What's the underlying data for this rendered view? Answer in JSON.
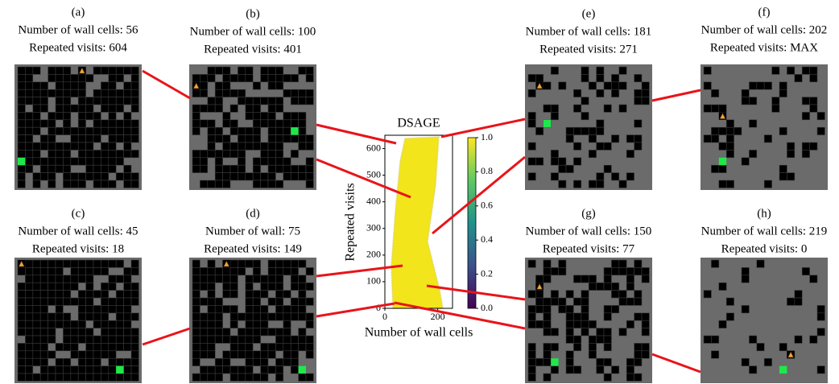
{
  "panels": [
    {
      "label": "(a)",
      "walls": "Number of wall cells: 56",
      "visits": "Repeated visits: 604"
    },
    {
      "label": "(b)",
      "walls": "Number of wall cells: 100",
      "visits": "Repeated visits: 401"
    },
    {
      "label": "(c)",
      "walls": "Number of wall cells: 45",
      "visits": "Repeated visits: 18"
    },
    {
      "label": "(d)",
      "walls": "Number of wall: 75",
      "visits": "Repeated visits: 149"
    },
    {
      "label": "(e)",
      "walls": "Number of wall cells: 181",
      "visits": "Repeated visits: 271"
    },
    {
      "label": "(f)",
      "walls": "Number of wall cells: 202",
      "visits": "Repeated visits: MAX"
    },
    {
      "label": "(g)",
      "walls": "Number of wall cells: 150",
      "visits": "Repeated visits: 77"
    },
    {
      "label": "(h)",
      "walls": "Number of wall cells: 219",
      "visits": "Repeated visits: 0"
    }
  ],
  "chart_data": {
    "type": "heatmap",
    "title": "DSAGE",
    "x_label": "Number of wall cells",
    "y_label": "Repeated visits",
    "xlim": [
      0,
      256
    ],
    "xticks": [
      0,
      200
    ],
    "ylim": [
      0,
      650
    ],
    "yticks": [
      0,
      100,
      200,
      300,
      400,
      500,
      600
    ],
    "clim": [
      0,
      1
    ],
    "cticks": [
      {
        "value": 0,
        "label": "0.0"
      },
      {
        "value": 0.2,
        "label": "0.2"
      },
      {
        "value": 0.4,
        "label": "0.4"
      },
      {
        "value": 0.6,
        "label": "0.6"
      },
      {
        "value": 0.8,
        "label": "0.8"
      },
      {
        "value": 1,
        "label": "1.0"
      }
    ],
    "color": "#f2e51b"
  }
}
